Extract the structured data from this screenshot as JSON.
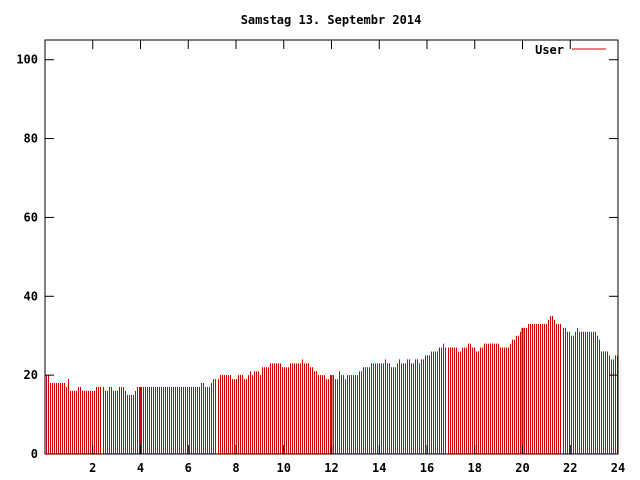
{
  "chart_data": {
    "type": "bar",
    "title": "Samstag 13. Septembr 2014",
    "xlabel": "",
    "ylabel": "",
    "xlim": [
      0,
      24
    ],
    "ylim": [
      0,
      105
    ],
    "x_ticks": [
      2,
      4,
      6,
      8,
      10,
      12,
      14,
      16,
      18,
      20,
      22,
      24
    ],
    "y_ticks": [
      0,
      20,
      40,
      60,
      80,
      100
    ],
    "grid": false,
    "legend_position": "top-right",
    "series": [
      {
        "name": "User",
        "color": "#cc0000",
        "bar_interval_hours": 0.0833,
        "values": [
          20,
          20,
          18,
          18,
          18,
          18,
          18,
          18,
          18,
          18,
          17,
          19,
          16,
          16,
          16,
          16,
          17,
          17,
          16,
          16,
          16,
          16,
          16,
          16,
          16,
          17,
          17,
          17,
          17,
          16,
          16,
          17,
          17,
          16,
          16,
          16,
          17,
          17,
          17,
          16,
          15,
          15,
          15,
          15,
          16,
          17,
          17,
          17,
          17,
          17,
          17,
          17,
          17,
          17,
          17,
          17,
          17,
          17,
          17,
          17,
          17,
          17,
          17,
          17,
          17,
          17,
          17,
          17,
          17,
          17,
          17,
          17,
          17,
          17,
          17,
          17,
          17,
          18,
          18,
          17,
          17,
          17,
          18,
          19,
          19,
          19,
          20,
          20,
          20,
          20,
          20,
          20,
          19,
          19,
          19,
          20,
          20,
          20,
          19,
          19,
          20,
          21,
          20,
          21,
          21,
          21,
          20,
          22,
          22,
          22,
          22,
          23,
          23,
          23,
          23,
          23,
          23,
          22,
          22,
          22,
          22,
          23,
          23,
          23,
          23,
          23,
          23,
          24,
          23,
          23,
          23,
          22,
          22,
          21,
          21,
          20,
          20,
          20,
          20,
          19,
          19,
          20,
          20,
          19,
          19,
          21,
          20,
          20,
          19,
          20,
          20,
          20,
          20,
          20,
          20,
          21,
          21,
          22,
          22,
          22,
          22,
          23,
          23,
          23,
          23,
          23,
          23,
          23,
          24,
          23,
          23,
          22,
          22,
          22,
          23,
          24,
          23,
          23,
          23,
          24,
          24,
          23,
          23,
          24,
          24,
          23,
          24,
          24,
          25,
          25,
          25,
          26,
          26,
          26,
          26,
          27,
          27,
          28,
          27,
          27,
          27,
          27,
          27,
          27,
          26,
          26,
          27,
          27,
          27,
          28,
          28,
          27,
          27,
          26,
          26,
          27,
          27,
          28,
          28,
          28,
          28,
          28,
          28,
          28,
          28,
          27,
          27,
          27,
          27,
          27,
          28,
          29,
          29,
          30,
          30,
          31,
          31,
          32,
          32,
          33,
          33,
          33,
          33,
          33,
          33,
          33,
          33,
          33,
          33,
          34,
          35,
          35,
          34,
          33,
          33,
          33,
          32,
          32,
          31,
          31,
          30,
          30,
          31,
          32,
          31,
          31,
          31,
          31,
          31,
          31,
          31,
          31,
          31,
          30,
          29,
          26,
          26,
          26,
          26,
          25,
          24,
          24,
          25,
          25
        ]
      }
    ],
    "emphasized_bars_hours": [
      4,
      12,
      20
    ]
  }
}
